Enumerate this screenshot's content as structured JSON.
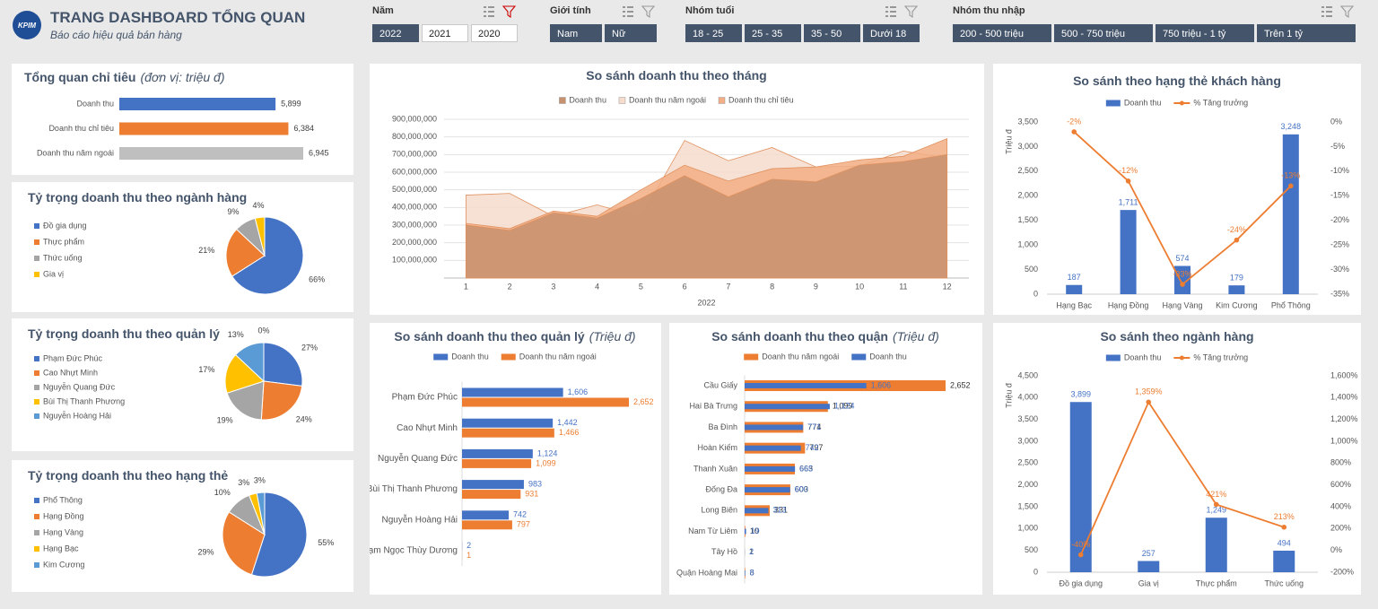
{
  "header": {
    "logo": "KPIM",
    "title": "TRANG DASHBOARD TỔNG QUAN",
    "subtitle": "Báo cáo hiệu quả bán hàng"
  },
  "filters": [
    {
      "label": "Năm",
      "options": [
        "2022",
        "2021",
        "2020"
      ],
      "selected": [
        0
      ]
    },
    {
      "label": "Giới tính",
      "options": [
        "Nam",
        "Nữ"
      ],
      "selected": [
        0,
        1
      ]
    },
    {
      "label": "Nhóm tuổi",
      "options": [
        "18 - 25",
        "25 - 35",
        "35 - 50",
        "Dưới 18"
      ],
      "selected": [
        0,
        1,
        2,
        3
      ]
    },
    {
      "label": "Nhóm thu nhập",
      "options": [
        "200 - 500 triệu",
        "500 - 750 triệu",
        "750 triệu - 1 tỷ",
        "Trên 1 tỷ"
      ],
      "selected": [
        0,
        1,
        2,
        3
      ]
    }
  ],
  "chart_data": [
    {
      "type": "hbar",
      "title": "Tổng quan chỉ tiêu",
      "unit": "(đơn vị: triệu đ)",
      "categories": [
        "Doanh thu",
        "Doanh thu chỉ tiêu",
        "Doanh thu năm ngoái"
      ],
      "values": [
        5899,
        6384,
        6945
      ],
      "value_labels": [
        "5,899",
        "6,384",
        "6,945"
      ],
      "colors": [
        "#4472c4",
        "#ed7d31",
        "#bfbfbf"
      ]
    },
    {
      "type": "pie",
      "title": "Tỷ trọng doanh thu theo ngành hàng",
      "categories": [
        "Đồ gia dụng",
        "Thực phẩm",
        "Thức uống",
        "Gia vị"
      ],
      "values": [
        66,
        21,
        9,
        4
      ],
      "value_labels": [
        "66%",
        "21%",
        "9%",
        "4%"
      ],
      "colors": [
        "#4472c4",
        "#ed7d31",
        "#a5a5a5",
        "#ffc000"
      ]
    },
    {
      "type": "pie",
      "title": "Tỷ trọng doanh thu theo quản lý",
      "categories": [
        "Phạm Đức Phúc",
        "Cao Nhựt Minh",
        "Nguyễn Quang Đức",
        "Bùi Thị Thanh Phương",
        "Nguyễn Hoàng Hải",
        null
      ],
      "values": [
        27,
        24,
        19,
        17,
        13,
        0
      ],
      "value_labels": [
        "27%",
        "24%",
        "19%",
        "17%",
        "13%",
        "0%"
      ],
      "colors": [
        "#4472c4",
        "#ed7d31",
        "#a5a5a5",
        "#ffc000",
        "#5b9bd5",
        "#70ad47"
      ]
    },
    {
      "type": "pie",
      "title": "Tỷ trọng doanh thu theo hạng thẻ",
      "categories": [
        "Phổ Thông",
        "Hạng Đồng",
        "Hạng Vàng",
        "Hạng Bạc",
        "Kim Cương"
      ],
      "values": [
        55,
        29,
        10,
        3,
        3
      ],
      "value_labels": [
        "55%",
        "29%",
        "10%",
        "3%",
        "3%"
      ],
      "colors": [
        "#4472c4",
        "#ed7d31",
        "#a5a5a5",
        "#ffc000",
        "#5b9bd5"
      ]
    },
    {
      "type": "area",
      "title": "So sánh doanh thu theo tháng",
      "xlabel": "2022",
      "categories": [
        "1",
        "2",
        "3",
        "4",
        "5",
        "6",
        "7",
        "8",
        "9",
        "10",
        "11",
        "12"
      ],
      "series": [
        {
          "name": "Doanh thu",
          "color": "#c8906e",
          "values": [
            300000000,
            270000000,
            370000000,
            340000000,
            450000000,
            580000000,
            460000000,
            560000000,
            545000000,
            640000000,
            660000000,
            700000000
          ]
        },
        {
          "name": "Doanh thu năm ngoái",
          "color": "#f6dccc",
          "values": [
            470000000,
            480000000,
            350000000,
            415000000,
            345000000,
            780000000,
            665000000,
            740000000,
            630000000,
            635000000,
            720000000,
            680000000
          ]
        },
        {
          "name": "Doanh thu chỉ tiêu",
          "color": "#f2ae84",
          "values": [
            310000000,
            280000000,
            380000000,
            350000000,
            500000000,
            640000000,
            550000000,
            620000000,
            630000000,
            670000000,
            690000000,
            790000000
          ]
        }
      ],
      "ylim": [
        0,
        900000000
      ],
      "yticks": [
        {
          "value": 100000000,
          "label": "100,000,000"
        },
        {
          "value": 200000000,
          "label": "200,000,000"
        },
        {
          "value": 300000000,
          "label": "300,000,000"
        },
        {
          "value": 400000000,
          "label": "400,000,000"
        },
        {
          "value": 500000000,
          "label": "500,000,000"
        },
        {
          "value": 600000000,
          "label": "600,000,000"
        },
        {
          "value": 700000000,
          "label": "700,000,000"
        },
        {
          "value": 800000000,
          "label": "800,000,000"
        },
        {
          "value": 900000000,
          "label": "900,000,000"
        }
      ],
      "grid": true
    },
    {
      "type": "combo",
      "title": "So sánh theo hạng thẻ khách hàng",
      "ylabel": "Triệu đ",
      "categories": [
        "Hạng Bạc",
        "Hạng Đồng",
        "Hạng Vàng",
        "Kim Cương",
        "Phổ Thông"
      ],
      "series": [
        {
          "name": "Doanh thu",
          "kind": "bar",
          "color": "#4472c4",
          "values": [
            187,
            1711,
            574,
            179,
            3248
          ],
          "value_labels": [
            "187",
            "1,711",
            "574",
            "179",
            "3,248"
          ]
        },
        {
          "name": "% Tăng trưởng",
          "kind": "line",
          "axis": "y2",
          "color": "#ed7d31",
          "values": [
            -2,
            -12,
            -33,
            -24,
            -13
          ],
          "value_labels": [
            "-2%",
            "-12%",
            "-33%",
            "-24%",
            "-13%"
          ]
        }
      ],
      "ylim": [
        0,
        3500
      ],
      "yticks": [
        0,
        500,
        {
          "value": 1000,
          "label": "1,000"
        },
        {
          "value": 1500,
          "label": "1,500"
        },
        {
          "value": 2000,
          "label": "2,000"
        },
        {
          "value": 2500,
          "label": "2,500"
        },
        {
          "value": 3000,
          "label": "3,000"
        },
        {
          "value": 3500,
          "label": "3,500"
        }
      ],
      "y2lim": [
        -35,
        0
      ],
      "y2ticks": [
        {
          "value": -35,
          "label": "-35%"
        },
        {
          "value": -30,
          "label": "-30%"
        },
        {
          "value": -25,
          "label": "-25%"
        },
        {
          "value": -20,
          "label": "-20%"
        },
        {
          "value": -15,
          "label": "-15%"
        },
        {
          "value": -10,
          "label": "-10%"
        },
        {
          "value": -5,
          "label": "-5%"
        },
        {
          "value": 0,
          "label": "0%"
        }
      ],
      "grid": false
    },
    {
      "type": "hbar_group",
      "title": "So sánh doanh thu theo quản lý",
      "unit": "(Triệu đ)",
      "categories": [
        "Phạm Đức Phúc",
        "Cao Nhựt Minh",
        "Nguyễn Quang Đức",
        "Bùi Thị Thanh Phương",
        "Nguyễn Hoàng Hải",
        "Phạm Ngọc Thùy Dương"
      ],
      "series": [
        {
          "name": "Doanh thu",
          "color": "#4472c4",
          "values": [
            1606,
            1442,
            1124,
            983,
            742,
            2
          ],
          "value_labels": [
            "1,606",
            "1,442",
            "1,124",
            "983",
            "742",
            "2"
          ]
        },
        {
          "name": "Doanh thu năm ngoái",
          "color": "#ed7d31",
          "values": [
            2652,
            1466,
            1099,
            931,
            797,
            1
          ],
          "value_labels": [
            "2,652",
            "1,466",
            "1,099",
            "931",
            "797",
            "1"
          ]
        }
      ]
    },
    {
      "type": "hbar_group",
      "title": "So sánh doanh thu theo quận",
      "unit": "(Triệu đ)",
      "categories": [
        "Cầu Giấy",
        "Hai Bà Trưng",
        "Ba Đình",
        "Hoàn Kiếm",
        "Thanh Xuân",
        "Đống Đa",
        "Long Biên",
        "Nam Từ Liêm",
        "Tây Hồ",
        "Quận Hoàng Mai"
      ],
      "series": [
        {
          "name": "Doanh thu năm ngoái",
          "color": "#ed7d31",
          "values": [
            2652,
            1099,
            774,
            797,
            663,
            603,
            331,
            10,
            1,
            8
          ],
          "value_labels": [
            "2,652",
            "1,099",
            "774",
            "797",
            "663",
            "603",
            "331",
            "10",
            "1",
            "8"
          ]
        },
        {
          "name": "Doanh thu",
          "color": "#4472c4",
          "values": [
            1606,
            1124,
            771,
            742,
            665,
            600,
            313,
            19,
            2,
            8
          ],
          "value_labels": [
            "1,606",
            "1,124",
            "771",
            "742",
            "665",
            "600",
            "313",
            "19",
            "2",
            "8"
          ]
        }
      ]
    },
    {
      "type": "combo",
      "title": "So sánh theo ngành hàng",
      "ylabel": "Triệu đ",
      "categories": [
        "Đồ gia dụng",
        "Gia vị",
        "Thực phẩm",
        "Thức uống"
      ],
      "series": [
        {
          "name": "Doanh thu",
          "kind": "bar",
          "color": "#4472c4",
          "values": [
            3899,
            257,
            1249,
            494
          ],
          "value_labels": [
            "3,899",
            "257",
            "1,249",
            "494"
          ]
        },
        {
          "name": "% Tăng trưởng",
          "kind": "line",
          "axis": "y2",
          "color": "#ed7d31",
          "values": [
            -40,
            1359,
            421,
            213
          ],
          "value_labels": [
            "-40%",
            "1,359%",
            "421%",
            "213%"
          ]
        }
      ],
      "ylim": [
        0,
        4500
      ],
      "yticks": [
        0,
        500,
        {
          "value": 1000,
          "label": "1,000"
        },
        {
          "value": 1500,
          "label": "1,500"
        },
        {
          "value": 2000,
          "label": "2,000"
        },
        {
          "value": 2500,
          "label": "2,500"
        },
        {
          "value": 3000,
          "label": "3,000"
        },
        {
          "value": 3500,
          "label": "3,500"
        },
        {
          "value": 4000,
          "label": "4,000"
        },
        {
          "value": 4500,
          "label": "4,500"
        }
      ],
      "y2lim": [
        -200,
        1600
      ],
      "y2ticks": [
        {
          "value": -200,
          "label": "-200%"
        },
        {
          "value": 0,
          "label": "0%"
        },
        {
          "value": 200,
          "label": "200%"
        },
        {
          "value": 400,
          "label": "400%"
        },
        {
          "value": 600,
          "label": "600%"
        },
        {
          "value": 800,
          "label": "800%"
        },
        {
          "value": 1000,
          "label": "1,000%"
        },
        {
          "value": 1200,
          "label": "1,200%"
        },
        {
          "value": 1400,
          "label": "1,400%"
        },
        {
          "value": 1600,
          "label": "1,600%"
        }
      ],
      "grid": false
    }
  ]
}
